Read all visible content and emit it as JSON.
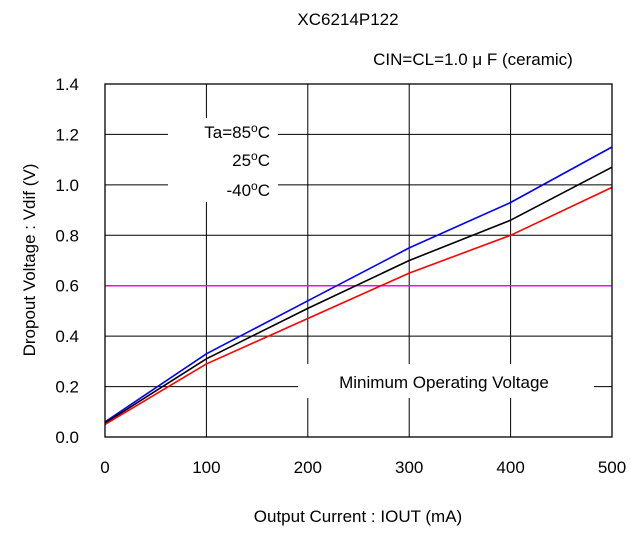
{
  "chart_data": {
    "type": "line",
    "title": "XC6214P122",
    "subtitle": "CIN=CL=1.0 μ F  (ceramic)",
    "xlabel": "Output Current : IOUT (mA)",
    "ylabel": "Dropout Voltage : Vdif (V)",
    "xlim": [
      0,
      500
    ],
    "ylim": [
      0,
      1.4
    ],
    "x_ticks": [
      "0",
      "100",
      "200",
      "300",
      "400",
      "500"
    ],
    "y_ticks": [
      "0.0",
      "0.2",
      "0.4",
      "0.6",
      "0.8",
      "1.0",
      "1.2",
      "1.4"
    ],
    "grid": true,
    "x": [
      0,
      100,
      200,
      300,
      400,
      500
    ],
    "series": [
      {
        "name": "Ta=85oC",
        "color": "#0000ff",
        "values": [
          0.06,
          0.33,
          0.54,
          0.75,
          0.93,
          1.15
        ]
      },
      {
        "name": "25oC",
        "color": "#000000",
        "values": [
          0.055,
          0.31,
          0.51,
          0.7,
          0.86,
          1.07
        ]
      },
      {
        "name": "-40oC",
        "color": "#ff0000",
        "values": [
          0.05,
          0.29,
          0.47,
          0.65,
          0.8,
          0.99
        ]
      }
    ],
    "reference_line": {
      "label": "Minimum Operating Voltage",
      "value": 0.6,
      "color": "#ff00ff"
    }
  }
}
